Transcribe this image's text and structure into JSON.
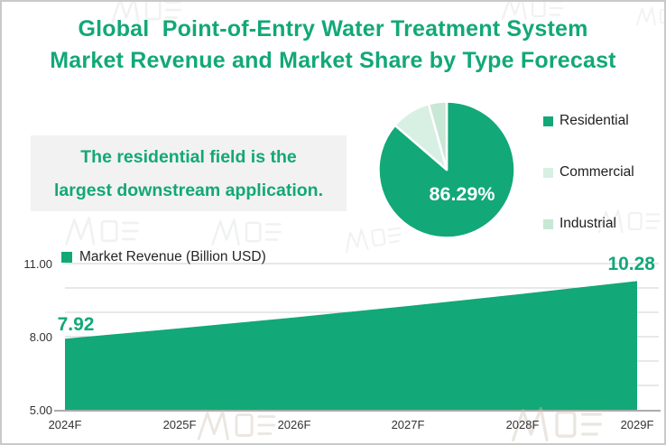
{
  "colors": {
    "brand_green": "#12A878",
    "commercial_light": "#D8EFE4",
    "industrial_light": "#C8E7D5",
    "callout_bg": "#F2F2F2",
    "gridline": "#D9D9D9",
    "axis_line": "#ABABAB",
    "tick_text": "#333333",
    "legend_text": "#262626"
  },
  "title": {
    "line1": "Global  Point-of-Entry Water Treatment System",
    "line2": "Market Revenue and Market Share by Type Forecast"
  },
  "callout": {
    "line1": "The residential field is the",
    "line2": "largest downstream application."
  },
  "pie_section": {
    "center_label": "86.29%",
    "legend": [
      {
        "label": "Residential"
      },
      {
        "label": "Commercial"
      },
      {
        "label": "Industrial"
      }
    ]
  },
  "revenue_section": {
    "legend_label": "Market Revenue (Billion USD)",
    "start_value_label": "7.92",
    "end_value_label": "10.28",
    "y_ticks": [
      "11.00",
      "8.00",
      "5.00"
    ],
    "x_ticks": [
      "2024F",
      "2025F",
      "2026F",
      "2027F",
      "2028F",
      "2029F"
    ]
  },
  "chart_data": [
    {
      "type": "pie",
      "labels": [
        "Residential",
        "Commercial",
        "Industrial"
      ],
      "values": [
        86.29,
        9.44,
        4.27
      ],
      "colors": [
        "#12A878",
        "#D8EFE4",
        "#C8E7D5"
      ],
      "data_labels": [
        "86.29%",
        "",
        ""
      ],
      "start_angle_deg": 0,
      "direction": "clockwise",
      "legend_position": "right"
    },
    {
      "type": "area",
      "title": "Market Revenue (Billion USD)",
      "x": [
        "2024F",
        "2025F",
        "2026F",
        "2027F",
        "2028F",
        "2029F"
      ],
      "series": [
        {
          "name": "Market Revenue (Billion USD)",
          "values": [
            7.92,
            8.34,
            8.79,
            9.26,
            9.76,
            10.28
          ]
        }
      ],
      "labeled_points": {
        "2024F": 7.92,
        "2029F": 10.28
      },
      "xlabel": "",
      "ylabel": "",
      "ylim": [
        5,
        11
      ],
      "yticks": [
        5.0,
        8.0,
        11.0
      ],
      "grid": true,
      "fill_color": "#12A878"
    }
  ]
}
